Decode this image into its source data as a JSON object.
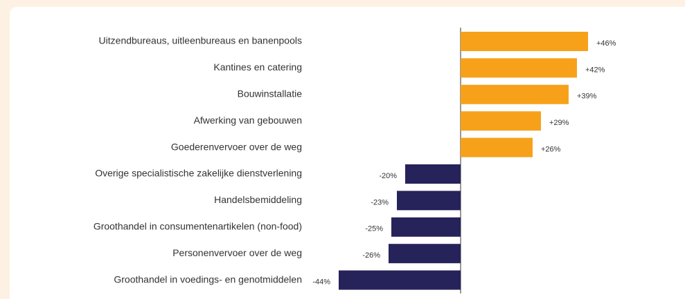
{
  "chart_data": {
    "type": "bar",
    "categories": [
      "Uitzendbureaus, uitleenbureaus en banenpools",
      "Kantines en catering",
      "Bouwinstallatie",
      "Afwerking van gebouwen",
      "Goederenvervoer over de weg",
      "Overige specialistische zakelijke dienstverlening",
      "Handelsbemiddeling",
      "Groothandel in consumentenartikelen (non-food)",
      "Personenvervoer over de weg",
      "Groothandel in voedings- en genotmiddelen"
    ],
    "values": [
      46,
      42,
      39,
      29,
      26,
      -20,
      -23,
      -25,
      -26,
      -44
    ],
    "value_labels": [
      "+46%",
      "+42%",
      "+39%",
      "+29%",
      "+26%",
      "-20%",
      "-23%",
      "-25%",
      "-26%",
      "-44%"
    ],
    "colors": [
      "#f7a11a",
      "#f7a11a",
      "#f7a11a",
      "#f7a11a",
      "#f7a11a",
      "#26225a",
      "#26225a",
      "#26225a",
      "#26225a",
      "#26225a"
    ]
  }
}
